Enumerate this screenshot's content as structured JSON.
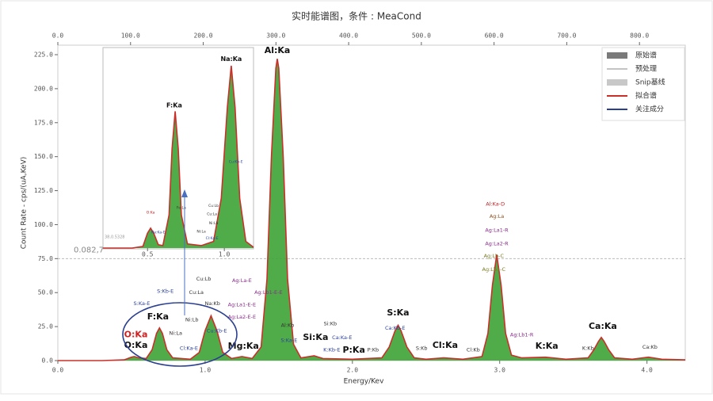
{
  "chart_data": [
    {
      "type": "line",
      "title": "实时能谱图，条件 : MeaCond",
      "xlabel": "Energy/Kev",
      "ylabel": "Count Rate - cps/(uA,KeV)",
      "x": [
        0.0,
        0.3,
        0.45,
        0.5,
        0.52,
        0.55,
        0.6,
        0.64,
        0.67,
        0.69,
        0.71,
        0.74,
        0.78,
        0.9,
        0.96,
        1.0,
        1.04,
        1.08,
        1.12,
        1.18,
        1.25,
        1.32,
        1.38,
        1.42,
        1.45,
        1.48,
        1.49,
        1.5,
        1.53,
        1.56,
        1.6,
        1.65,
        1.74,
        1.8,
        2.0,
        2.2,
        2.25,
        2.29,
        2.31,
        2.33,
        2.37,
        2.42,
        2.5,
        2.62,
        2.75,
        2.88,
        2.92,
        2.95,
        2.98,
        3.01,
        3.04,
        3.08,
        3.15,
        3.31,
        3.45,
        3.6,
        3.64,
        3.67,
        3.69,
        3.71,
        3.74,
        3.78,
        3.9,
        4.01,
        4.1,
        4.26
      ],
      "series": [
        {
          "name": "拟合谱",
          "color": "#c8302a",
          "fill": "#3da335",
          "values": [
            0,
            0,
            0.5,
            2.5,
            3,
            2,
            1.5,
            8,
            20,
            24,
            20,
            8,
            2,
            1,
            6,
            22,
            33,
            22,
            6,
            1.5,
            3,
            1.5,
            10,
            60,
            150,
            215,
            222,
            215,
            150,
            60,
            12,
            2,
            3.5,
            1.5,
            1,
            2,
            10,
            22,
            26,
            22,
            10,
            2,
            1,
            2,
            1,
            3,
            20,
            55,
            78,
            55,
            20,
            4,
            2,
            2.5,
            1,
            2,
            8,
            14,
            17,
            14,
            8,
            2,
            1,
            2.5,
            1,
            0.5
          ]
        }
      ],
      "legend_items": [
        {
          "name": "原始谱",
          "color": "#7a7a7a",
          "style": "bar"
        },
        {
          "name": "预处理",
          "color": "#888888",
          "style": "line"
        },
        {
          "name": "Snip基线",
          "color": "#c8c8c8",
          "style": "bar"
        },
        {
          "name": "关注成分",
          "color": "#2a3f8f",
          "style": "line"
        }
      ],
      "xlim": [
        0,
        4.26
      ],
      "ylim": [
        0,
        232
      ],
      "x2lim": [
        0,
        863
      ],
      "xticks": [
        {
          "value": 0,
          "label": "0.0"
        },
        {
          "value": 1,
          "label": "1.0"
        },
        {
          "value": 2,
          "label": "2.0"
        },
        {
          "value": 3,
          "label": "3.0"
        },
        {
          "value": 4,
          "label": "4.0"
        }
      ],
      "yticks": [
        {
          "value": 0,
          "label": "0.0"
        },
        {
          "value": 25,
          "label": "25.0"
        },
        {
          "value": 50,
          "label": "50.0"
        },
        {
          "value": 75,
          "label": "75.0"
        },
        {
          "value": 100,
          "label": "100.0"
        },
        {
          "value": 125,
          "label": "125.0"
        },
        {
          "value": 150,
          "label": "150.0"
        },
        {
          "value": 175,
          "label": "175.0"
        },
        {
          "value": 200,
          "label": "200.0"
        },
        {
          "value": 225,
          "label": "225.0"
        }
      ],
      "x2ticks": [
        {
          "value": 0,
          "label": "0.0"
        },
        {
          "value": 100,
          "label": "100.0"
        },
        {
          "value": 200,
          "label": "200.0"
        },
        {
          "value": 300,
          "label": "300.0"
        },
        {
          "value": 400,
          "label": "400.0"
        },
        {
          "value": 500,
          "label": "500.0"
        },
        {
          "value": 600,
          "label": "600.0"
        },
        {
          "value": 700,
          "label": "700.0"
        },
        {
          "value": 800,
          "label": "800.0"
        }
      ],
      "threshold": {
        "value": 75,
        "label": "0.082,7"
      },
      "annotations": [
        {
          "text": "Al:Ka",
          "x": 1.49,
          "y": 228,
          "color": "#111111",
          "bold": true
        },
        {
          "text": "O:Ka",
          "x": 0.53,
          "y": 19,
          "color": "#d02020",
          "bold": true
        },
        {
          "text": "O:Ka",
          "x": 0.53,
          "y": 11,
          "color": "#111111",
          "bold": true
        },
        {
          "text": "F:Ka",
          "x": 0.68,
          "y": 32,
          "color": "#111111",
          "bold": true
        },
        {
          "text": "Mg:Ka",
          "x": 1.26,
          "y": 10.6,
          "color": "#111111",
          "bold": true
        },
        {
          "text": "Si:Ka",
          "x": 1.75,
          "y": 17,
          "color": "#111111",
          "bold": true
        },
        {
          "text": "P:Ka",
          "x": 2.01,
          "y": 7.7,
          "color": "#111111",
          "bold": true
        },
        {
          "text": "S:Ka",
          "x": 2.31,
          "y": 35,
          "color": "#111111",
          "bold": true
        },
        {
          "text": "Cl:Ka",
          "x": 2.63,
          "y": 11,
          "color": "#111111",
          "bold": true
        },
        {
          "text": "K:Ka",
          "x": 3.32,
          "y": 10.6,
          "color": "#111111",
          "bold": true
        },
        {
          "text": "Ca:Ka",
          "x": 3.7,
          "y": 25,
          "color": "#111111",
          "bold": true
        },
        {
          "text": "S:Ka-E",
          "x": 0.57,
          "y": 42,
          "color": "#2a3f9f",
          "bold": false
        },
        {
          "text": "S:Kb-E",
          "x": 0.73,
          "y": 51,
          "color": "#2a3f9f",
          "bold": false
        },
        {
          "text": "Cu:Lb",
          "x": 0.99,
          "y": 60,
          "color": "#333333",
          "bold": false
        },
        {
          "text": "Cu:La",
          "x": 0.94,
          "y": 50,
          "color": "#333333",
          "bold": false
        },
        {
          "text": "Ag:La-E",
          "x": 1.25,
          "y": 59,
          "color": "#8a2a8a",
          "bold": false
        },
        {
          "text": "Na:Kb",
          "x": 1.05,
          "y": 42,
          "color": "#333333",
          "bold": false
        },
        {
          "text": "Ag:Lb1-E-E",
          "x": 1.43,
          "y": 50,
          "color": "#8a2a8a",
          "bold": false
        },
        {
          "text": "Ag:La1-E-E",
          "x": 1.25,
          "y": 41,
          "color": "#8a2a8a",
          "bold": false
        },
        {
          "text": "Ag:La2-E-E",
          "x": 1.25,
          "y": 32,
          "color": "#8a2a8a",
          "bold": false
        },
        {
          "text": "Ni:Lb",
          "x": 0.91,
          "y": 30,
          "color": "#333333",
          "bold": false
        },
        {
          "text": "Ni:La",
          "x": 0.8,
          "y": 20,
          "color": "#333333",
          "bold": false
        },
        {
          "text": "Cl:Ka-E",
          "x": 0.89,
          "y": 9,
          "color": "#2a3f9f",
          "bold": false
        },
        {
          "text": "Cu:Kb-E",
          "x": 1.08,
          "y": 22,
          "color": "#2a3f9f",
          "bold": false
        },
        {
          "text": "Al:Kb",
          "x": 1.56,
          "y": 26,
          "color": "#333333",
          "bold": false
        },
        {
          "text": "S:Ka-E",
          "x": 1.57,
          "y": 15,
          "color": "#2a3f9f",
          "bold": false
        },
        {
          "text": "Si:Kb",
          "x": 1.85,
          "y": 27,
          "color": "#333333",
          "bold": false
        },
        {
          "text": "Ca:Ka-E",
          "x": 1.93,
          "y": 17,
          "color": "#2a3f9f",
          "bold": false
        },
        {
          "text": "K:Kb-E",
          "x": 1.86,
          "y": 8,
          "color": "#2a3f9f",
          "bold": false
        },
        {
          "text": "P:Kb",
          "x": 2.14,
          "y": 8,
          "color": "#333333",
          "bold": false
        },
        {
          "text": "Ca:Kb-E",
          "x": 2.29,
          "y": 24,
          "color": "#2a3f9f",
          "bold": false
        },
        {
          "text": "S:Kb",
          "x": 2.47,
          "y": 9,
          "color": "#333333",
          "bold": false
        },
        {
          "text": "Cl:Kb",
          "x": 2.82,
          "y": 8,
          "color": "#333333",
          "bold": false
        },
        {
          "text": "Al:Ka-D",
          "x": 2.97,
          "y": 115,
          "color": "#c02020",
          "bold": false
        },
        {
          "text": "Ag:La",
          "x": 2.98,
          "y": 106,
          "color": "#8a4a1a",
          "bold": false
        },
        {
          "text": "Ag:La1-R",
          "x": 2.98,
          "y": 96,
          "color": "#8a2a8a",
          "bold": false
        },
        {
          "text": "Ag:La2-R",
          "x": 2.98,
          "y": 86,
          "color": "#8a2a8a",
          "bold": false
        },
        {
          "text": "Ag:Lb-C",
          "x": 2.96,
          "y": 77,
          "color": "#7a7a20",
          "bold": false
        },
        {
          "text": "Ag:Lb1-C",
          "x": 2.96,
          "y": 67,
          "color": "#7a7a20",
          "bold": false
        },
        {
          "text": "Ag:Lb1-R",
          "x": 3.15,
          "y": 19,
          "color": "#8a2a8a",
          "bold": false
        },
        {
          "text": "K:Kb",
          "x": 3.6,
          "y": 9,
          "color": "#333333",
          "bold": false
        },
        {
          "text": "Ca:Kb",
          "x": 4.02,
          "y": 10,
          "color": "#333333",
          "bold": false
        }
      ]
    },
    {
      "type": "line",
      "corner_text": "38,0.5328",
      "x": [
        0.21,
        0.4,
        0.47,
        0.5,
        0.52,
        0.54,
        0.57,
        0.6,
        0.64,
        0.66,
        0.68,
        0.7,
        0.72,
        0.76,
        0.85,
        0.93,
        0.98,
        1.02,
        1.045,
        1.07,
        1.1,
        1.14,
        1.19
      ],
      "series": [
        {
          "color": "#c8302a",
          "fill": "#3da335",
          "values": [
            0,
            0,
            2,
            18,
            24,
            18,
            4,
            3,
            40,
            120,
            165,
            120,
            40,
            5,
            3,
            8,
            60,
            170,
            220,
            170,
            60,
            8,
            1
          ]
        }
      ],
      "xlim": [
        0.21,
        1.19
      ],
      "ylim": [
        0,
        240
      ],
      "xticks": [
        0.5,
        {
          "value": 1,
          "label": "1.0"
        }
      ],
      "annotations": [
        {
          "text": "F:Ka",
          "x": 0.674,
          "y": 172,
          "color": "#111111",
          "bold": true
        },
        {
          "text": "Na:Ka",
          "x": 1.045,
          "y": 228,
          "color": "#111111",
          "bold": true
        },
        {
          "text": "O:Ka",
          "x": 0.52,
          "y": 43,
          "color": "#c02020",
          "bold": false
        },
        {
          "text": "Na:Ka-E",
          "x": 0.57,
          "y": 19,
          "color": "#2a3f9f",
          "bold": false
        },
        {
          "text": "Fe:La",
          "x": 0.72,
          "y": 49,
          "color": "#333333",
          "bold": false
        },
        {
          "text": "Cu:Lb",
          "x": 0.93,
          "y": 51,
          "color": "#333333",
          "bold": false
        },
        {
          "text": "Cu:La",
          "x": 0.92,
          "y": 41,
          "color": "#333333",
          "bold": false
        },
        {
          "text": "Ni:Lb",
          "x": 0.93,
          "y": 30,
          "color": "#333333",
          "bold": false
        },
        {
          "text": "Ni:La",
          "x": 0.85,
          "y": 20,
          "color": "#333333",
          "bold": false
        },
        {
          "text": "Cl:Ka-E",
          "x": 0.92,
          "y": 12,
          "color": "#2a3f9f",
          "bold": false
        },
        {
          "text": "Cu:Kb-E",
          "x": 1.075,
          "y": 104,
          "color": "#2a3f9f",
          "bold": false
        }
      ]
    }
  ]
}
